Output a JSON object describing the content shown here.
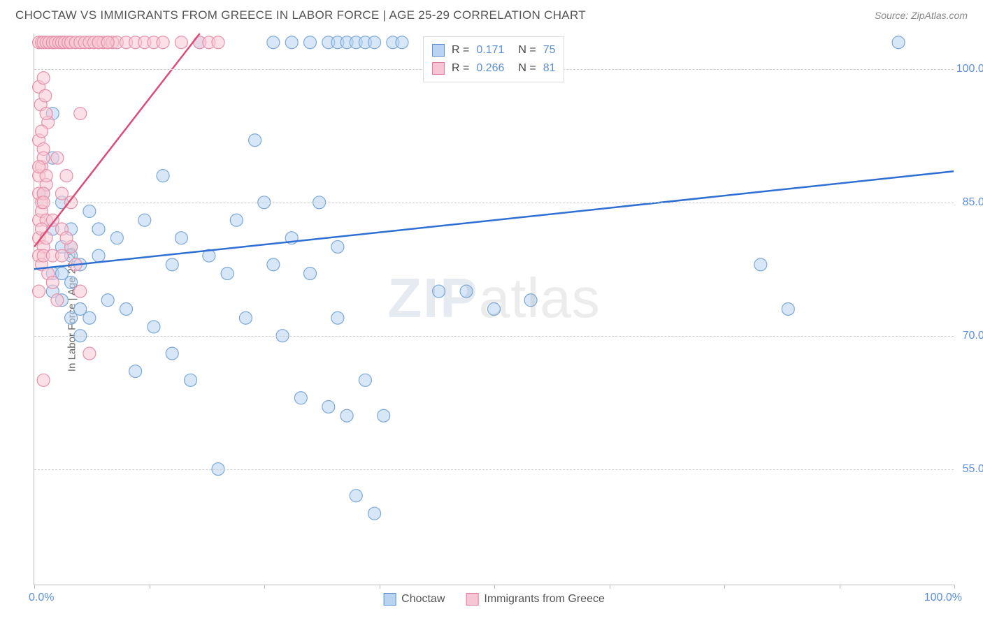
{
  "header": {
    "title": "CHOCTAW VS IMMIGRANTS FROM GREECE IN LABOR FORCE | AGE 25-29 CORRELATION CHART",
    "source_prefix": "Source: ",
    "source_name": "ZipAtlas.com"
  },
  "chart": {
    "type": "scatter",
    "y_axis_title": "In Labor Force | Age 25-29",
    "xlim": [
      0,
      100
    ],
    "ylim": [
      42,
      104
    ],
    "x_ticks": [
      0,
      12.5,
      25,
      37.5,
      50,
      62.5,
      75,
      87.5,
      100
    ],
    "x_tick_labels": {
      "left": "0.0%",
      "right": "100.0%"
    },
    "y_gridlines": [
      55.0,
      70.0,
      85.0,
      100.0
    ],
    "y_tick_labels": [
      "55.0%",
      "70.0%",
      "85.0%",
      "100.0%"
    ],
    "grid_color": "#cccccc",
    "axis_color": "#bbbbbb",
    "background_color": "#ffffff",
    "tick_label_color": "#5b8fd6",
    "watermark": {
      "zip": "ZIP",
      "atlas": "atlas"
    },
    "legend_top": [
      {
        "swatch_fill": "#b8d4f0",
        "swatch_stroke": "#5b8fd6",
        "r_label": "R =",
        "r_value": "0.171",
        "n_label": "N =",
        "n_value": "75"
      },
      {
        "swatch_fill": "#f7c6d4",
        "swatch_stroke": "#e47a9a",
        "r_label": "R =",
        "r_value": "0.266",
        "n_label": "N =",
        "n_value": "81"
      }
    ],
    "legend_bottom": [
      {
        "swatch_fill": "#b8d4f0",
        "swatch_stroke": "#5b8fd6",
        "label": "Choctaw"
      },
      {
        "swatch_fill": "#f7c6d4",
        "swatch_stroke": "#e47a9a",
        "label": "Immigrants from Greece"
      }
    ],
    "series": [
      {
        "name": "choctaw",
        "marker_fill": "rgba(184,212,240,0.55)",
        "marker_stroke": "#7aa8d8",
        "marker_radius": 9,
        "trend_stroke": "#2e6fd4",
        "trend_width": 2.5,
        "trend": {
          "x1": 0,
          "y1": 77.5,
          "x2": 100,
          "y2": 88.5
        },
        "points": [
          [
            2,
            103
          ],
          [
            3,
            103
          ],
          [
            4,
            80
          ],
          [
            4,
            82
          ],
          [
            5,
            78
          ],
          [
            5,
            73
          ],
          [
            6,
            72
          ],
          [
            7,
            82
          ],
          [
            8,
            74
          ],
          [
            9,
            81
          ],
          [
            10,
            73
          ],
          [
            11,
            66
          ],
          [
            12,
            83
          ],
          [
            13,
            71
          ],
          [
            14,
            88
          ],
          [
            15,
            78
          ],
          [
            15,
            68
          ],
          [
            16,
            81
          ],
          [
            17,
            65
          ],
          [
            18,
            103
          ],
          [
            19,
            79
          ],
          [
            20,
            55
          ],
          [
            21,
            77
          ],
          [
            22,
            83
          ],
          [
            23,
            72
          ],
          [
            24,
            92
          ],
          [
            25,
            85
          ],
          [
            26,
            78
          ],
          [
            26,
            103
          ],
          [
            27,
            70
          ],
          [
            28,
            81
          ],
          [
            28,
            103
          ],
          [
            29,
            63
          ],
          [
            30,
            77
          ],
          [
            30,
            103
          ],
          [
            31,
            85
          ],
          [
            32,
            62
          ],
          [
            32,
            103
          ],
          [
            33,
            72
          ],
          [
            33,
            80
          ],
          [
            33,
            103
          ],
          [
            34,
            61
          ],
          [
            34,
            103
          ],
          [
            35,
            52
          ],
          [
            35,
            103
          ],
          [
            36,
            65
          ],
          [
            36,
            103
          ],
          [
            37,
            50
          ],
          [
            37,
            103
          ],
          [
            38,
            61
          ],
          [
            39,
            103
          ],
          [
            40,
            103
          ],
          [
            44,
            75
          ],
          [
            47,
            75
          ],
          [
            50,
            73
          ],
          [
            54,
            74
          ],
          [
            79,
            78
          ],
          [
            82,
            73
          ],
          [
            94,
            103
          ],
          [
            2,
            95
          ],
          [
            2,
            90
          ],
          [
            3,
            85
          ],
          [
            4,
            76
          ],
          [
            5,
            70
          ],
          [
            6,
            84
          ],
          [
            7,
            79
          ],
          [
            2,
            77
          ],
          [
            3,
            74
          ],
          [
            4,
            72
          ],
          [
            2,
            82
          ],
          [
            3,
            80
          ],
          [
            1,
            86
          ],
          [
            2,
            75
          ],
          [
            3,
            77
          ],
          [
            4,
            79
          ]
        ]
      },
      {
        "name": "greece",
        "marker_fill": "rgba(247,198,212,0.55)",
        "marker_stroke": "#e690aa",
        "marker_radius": 9,
        "trend_stroke": "#db4d79",
        "trend_width": 2.5,
        "trend": {
          "x1": 0,
          "y1": 80,
          "x2": 18,
          "y2": 104
        },
        "points": [
          [
            0.5,
            103
          ],
          [
            0.8,
            103
          ],
          [
            1,
            103
          ],
          [
            1.3,
            103
          ],
          [
            1.6,
            103
          ],
          [
            2,
            103
          ],
          [
            2.3,
            103
          ],
          [
            2.7,
            103
          ],
          [
            3,
            103
          ],
          [
            3.3,
            103
          ],
          [
            3.7,
            103
          ],
          [
            4,
            103
          ],
          [
            4.5,
            103
          ],
          [
            5,
            103
          ],
          [
            5.5,
            103
          ],
          [
            6,
            103
          ],
          [
            6.5,
            103
          ],
          [
            7,
            103
          ],
          [
            7.5,
            103
          ],
          [
            8,
            103
          ],
          [
            8.5,
            103
          ],
          [
            9,
            103
          ],
          [
            10,
            103
          ],
          [
            11,
            103
          ],
          [
            12,
            103
          ],
          [
            0.5,
            98
          ],
          [
            0.7,
            96
          ],
          [
            1,
            99
          ],
          [
            1.2,
            97
          ],
          [
            1.5,
            94
          ],
          [
            0.5,
            92
          ],
          [
            0.8,
            93
          ],
          [
            1,
            91
          ],
          [
            1.3,
            95
          ],
          [
            0.5,
            88
          ],
          [
            0.8,
            89
          ],
          [
            1,
            90
          ],
          [
            1.3,
            87
          ],
          [
            0.5,
            86
          ],
          [
            0.8,
            85
          ],
          [
            1,
            86
          ],
          [
            1.3,
            88
          ],
          [
            0.5,
            83
          ],
          [
            0.8,
            84
          ],
          [
            1,
            85
          ],
          [
            1.3,
            83
          ],
          [
            0.5,
            81
          ],
          [
            0.8,
            82
          ],
          [
            1,
            80
          ],
          [
            1.3,
            81
          ],
          [
            0.5,
            79
          ],
          [
            0.8,
            78
          ],
          [
            1,
            79
          ],
          [
            0.5,
            89
          ],
          [
            2,
            83
          ],
          [
            2.5,
            90
          ],
          [
            3,
            86
          ],
          [
            3.5,
            88
          ],
          [
            4,
            80
          ],
          [
            4.5,
            78
          ],
          [
            5,
            95
          ],
          [
            2,
            79
          ],
          [
            3,
            82
          ],
          [
            1.5,
            77
          ],
          [
            2,
            76
          ],
          [
            2.5,
            74
          ],
          [
            3,
            79
          ],
          [
            3.5,
            81
          ],
          [
            4,
            85
          ],
          [
            5,
            75
          ],
          [
            6,
            68
          ],
          [
            7,
            103
          ],
          [
            8,
            103
          ],
          [
            13,
            103
          ],
          [
            14,
            103
          ],
          [
            16,
            103
          ],
          [
            18,
            103
          ],
          [
            19,
            103
          ],
          [
            20,
            103
          ],
          [
            0.5,
            75
          ],
          [
            1,
            65
          ]
        ]
      }
    ]
  }
}
